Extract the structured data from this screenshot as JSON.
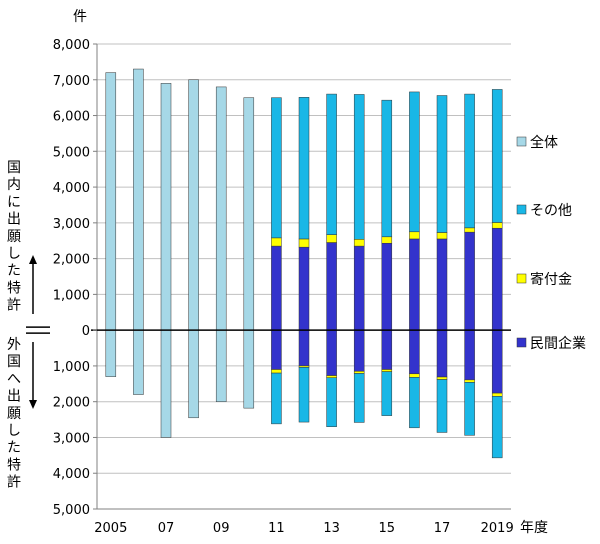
{
  "chart_data": {
    "type": "bar",
    "stacked": true,
    "y_unit": "件",
    "x_unit": "年度",
    "ylim": [
      -5000,
      8000
    ],
    "y_ticks": [
      {
        "value": 8000,
        "label": "8,000"
      },
      {
        "value": 7000,
        "label": "7,000"
      },
      {
        "value": 6000,
        "label": "6,000"
      },
      {
        "value": 5000,
        "label": "5,000"
      },
      {
        "value": 4000,
        "label": "4,000"
      },
      {
        "value": 3000,
        "label": "3,000"
      },
      {
        "value": 2000,
        "label": "2,000"
      },
      {
        "value": 1000,
        "label": "1,000"
      },
      {
        "value": 0,
        "label": "0"
      },
      {
        "value": -1000,
        "label": "1,000"
      },
      {
        "value": -2000,
        "label": "2,000"
      },
      {
        "value": -3000,
        "label": "3,000"
      },
      {
        "value": -4000,
        "label": "4,000"
      },
      {
        "value": -5000,
        "label": "5,000"
      }
    ],
    "categories": [
      "2005",
      "2006",
      "2007",
      "2008",
      "2009",
      "2010",
      "2011",
      "2012",
      "2013",
      "2014",
      "2015",
      "2016",
      "2017",
      "2018",
      "2019"
    ],
    "x_tick_labels": [
      "2005",
      "",
      "07",
      "",
      "09",
      "",
      "11",
      "",
      "13",
      "",
      "15",
      "",
      "17",
      "",
      "2019"
    ],
    "upper_label": "国内に出願した特許",
    "lower_label": "外国へ出願した特許",
    "series": [
      {
        "name": "全体",
        "color": "#a6d8e7",
        "domestic": [
          7200,
          7300,
          6900,
          7000,
          6800,
          6500,
          null,
          null,
          null,
          null,
          null,
          null,
          null,
          null,
          null
        ],
        "foreign": [
          1300,
          1800,
          3000,
          2450,
          2000,
          2180,
          null,
          null,
          null,
          null,
          null,
          null,
          null,
          null,
          null
        ]
      },
      {
        "name": "民間企業",
        "color": "#3333cc",
        "domestic": [
          null,
          null,
          null,
          null,
          null,
          null,
          2350,
          2320,
          2450,
          2350,
          2430,
          2550,
          2550,
          2740,
          2850
        ],
        "foreign": [
          null,
          null,
          null,
          null,
          null,
          null,
          1100,
          1000,
          1270,
          1150,
          1100,
          1220,
          1310,
          1390,
          1760
        ]
      },
      {
        "name": "寄付金",
        "color": "#ffff00",
        "domestic": [
          null,
          null,
          null,
          null,
          null,
          null,
          230,
          230,
          220,
          190,
          180,
          200,
          180,
          120,
          160
        ],
        "foreign": [
          null,
          null,
          null,
          null,
          null,
          null,
          100,
          40,
          60,
          60,
          60,
          100,
          70,
          70,
          90
        ]
      },
      {
        "name": "その他",
        "color": "#19b7e6",
        "domestic": [
          null,
          null,
          null,
          null,
          null,
          null,
          3920,
          3960,
          3930,
          4050,
          3820,
          3910,
          3830,
          3740,
          3720
        ],
        "foreign": [
          null,
          null,
          null,
          null,
          null,
          null,
          1420,
          1530,
          1370,
          1370,
          1230,
          1410,
          1480,
          1480,
          1720
        ]
      }
    ],
    "legend": {
      "placement": "right",
      "order": [
        "全体",
        "その他",
        "寄付金",
        "民間企業"
      ]
    },
    "grid": true
  }
}
